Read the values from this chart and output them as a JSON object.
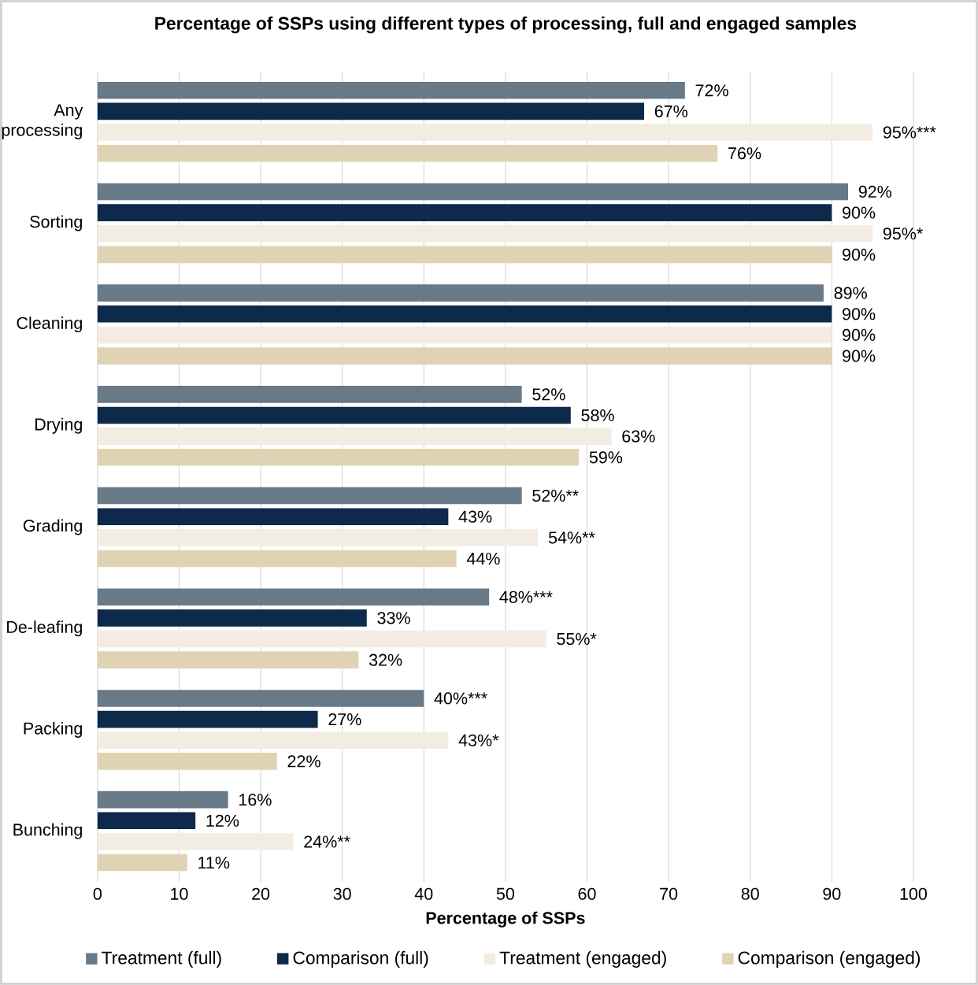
{
  "chart_data": {
    "type": "bar",
    "orientation": "horizontal",
    "title": "Percentage of SSPs using different types of processing, full and engaged samples",
    "xlabel": "Percentage of SSPs",
    "categories": [
      "Any processing",
      "Sorting",
      "Cleaning",
      "Drying",
      "Grading",
      "De-leafing",
      "Packing",
      "Bunching"
    ],
    "xlim": [
      0,
      100
    ],
    "xticks": [
      0,
      10,
      20,
      30,
      40,
      50,
      60,
      70,
      80,
      90,
      100
    ],
    "grid": "x",
    "legend": "bottom",
    "series": [
      {
        "name": "Treatment (full)",
        "color": "#687987",
        "values": [
          72,
          92,
          89,
          52,
          52,
          48,
          40,
          16
        ],
        "value_labels": [
          "72%",
          "92%",
          "89%",
          "52%",
          "52%**",
          "48%***",
          "40%***",
          "16%"
        ]
      },
      {
        "name": "Comparison (full)",
        "color": "#0d2a4a",
        "values": [
          67,
          90,
          90,
          58,
          43,
          33,
          27,
          12
        ],
        "value_labels": [
          "67%",
          "90%",
          "90%",
          "58%",
          "43%",
          "33%",
          "27%",
          "12%"
        ]
      },
      {
        "name": "Treatment (engaged)",
        "color": "#f3ece2",
        "values": [
          95,
          95,
          90,
          63,
          54,
          55,
          43,
          24
        ],
        "value_labels": [
          "95%***",
          "95%*",
          "90%",
          "63%",
          "54%**",
          "55%*",
          "43%*",
          "24%**"
        ]
      },
      {
        "name": "Comparison (engaged)",
        "color": "#e0d3b4",
        "values": [
          76,
          90,
          90,
          59,
          44,
          32,
          22,
          11
        ],
        "value_labels": [
          "76%",
          "90%",
          "90%",
          "59%",
          "44%",
          "32%",
          "22%",
          "11%"
        ]
      }
    ]
  }
}
